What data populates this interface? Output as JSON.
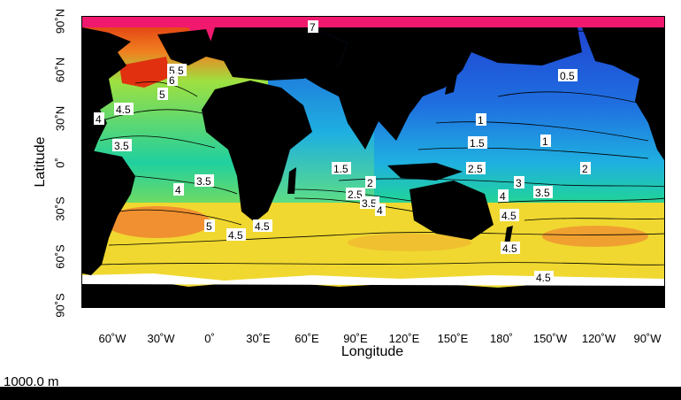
{
  "map": {
    "xlabel": "Longitude",
    "ylabel": "Latitude",
    "x_ticks": [
      "60˚W",
      "30˚W",
      "0˚",
      "30˚E",
      "60˚E",
      "90˚E",
      "120˚E",
      "150˚E",
      "180˚",
      "150˚W",
      "120˚W",
      "90˚W"
    ],
    "y_ticks": [
      "90˚N",
      "60˚N",
      "30˚N",
      "0˚",
      "30˚S",
      "60˚S",
      "90˚S"
    ],
    "depth": "1000.0 m",
    "contour_labels": [
      "7",
      "5.5",
      "6",
      "5",
      "4.5",
      "4",
      "3.5",
      "3.5",
      "4",
      "5",
      "4.5",
      "4.5",
      "0.5",
      "1",
      "1.5",
      "1",
      "1.5",
      "2.5",
      "2",
      "2",
      "2.5",
      "3.5",
      "4",
      "3",
      "3.5",
      "4",
      "4.5",
      "4.5",
      "4.5"
    ],
    "colors": {
      "land": "#000000",
      "ice": "#ffffff",
      "arctic": "#f0196e",
      "cold": "#1f4fd8",
      "cool": "#1fa0e0",
      "mid": "#20d0a0",
      "green": "#7ee040",
      "warm": "#f0e030",
      "hot": "#f08020",
      "hottest": "#e03010"
    }
  }
}
